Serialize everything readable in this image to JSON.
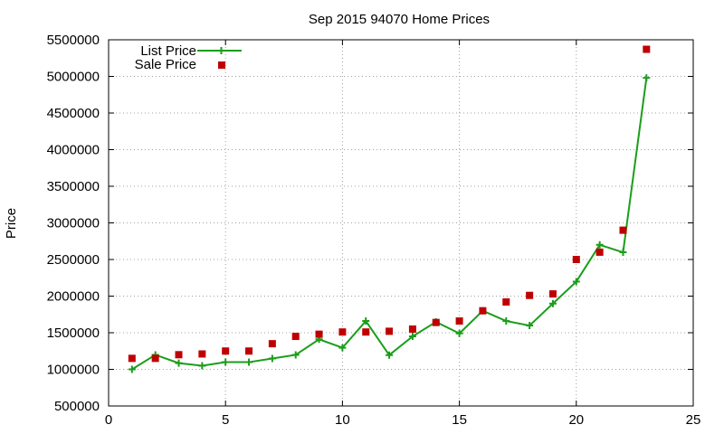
{
  "chart_data": {
    "type": "line",
    "title": "Sep 2015 94070 Home Prices",
    "xlabel": "",
    "ylabel": "Price",
    "xlim": [
      0,
      25
    ],
    "ylim": [
      500000,
      5500000
    ],
    "xticks": [
      0,
      5,
      10,
      15,
      20,
      25
    ],
    "yticks": [
      500000,
      1000000,
      1500000,
      2000000,
      2500000,
      3000000,
      3500000,
      4000000,
      4500000,
      5000000,
      5500000
    ],
    "grid": true,
    "legend_position": "top-left",
    "x": [
      1,
      2,
      3,
      4,
      5,
      6,
      7,
      8,
      9,
      10,
      11,
      12,
      13,
      14,
      15,
      16,
      17,
      18,
      19,
      20,
      21,
      22,
      23
    ],
    "series": [
      {
        "name": "List Price",
        "style": "line-points",
        "color": "#1a9e1a",
        "values": [
          1000000,
          1198000,
          1085000,
          1050000,
          1098000,
          1098000,
          1148000,
          1198000,
          1410000,
          1295000,
          1660000,
          1195000,
          1450000,
          1648000,
          1490000,
          1800000,
          1660000,
          1598000,
          1898000,
          2198000,
          2700000,
          2598000,
          4980000
        ]
      },
      {
        "name": "Sale Price",
        "style": "points",
        "color": "#c00000",
        "values": [
          1150000,
          1150000,
          1200000,
          1210000,
          1250000,
          1250000,
          1350000,
          1450000,
          1480000,
          1510000,
          1510000,
          1520000,
          1550000,
          1640000,
          1660000,
          1800000,
          1920000,
          2010000,
          2030000,
          2500000,
          2600000,
          2900000,
          5370000
        ]
      }
    ]
  }
}
